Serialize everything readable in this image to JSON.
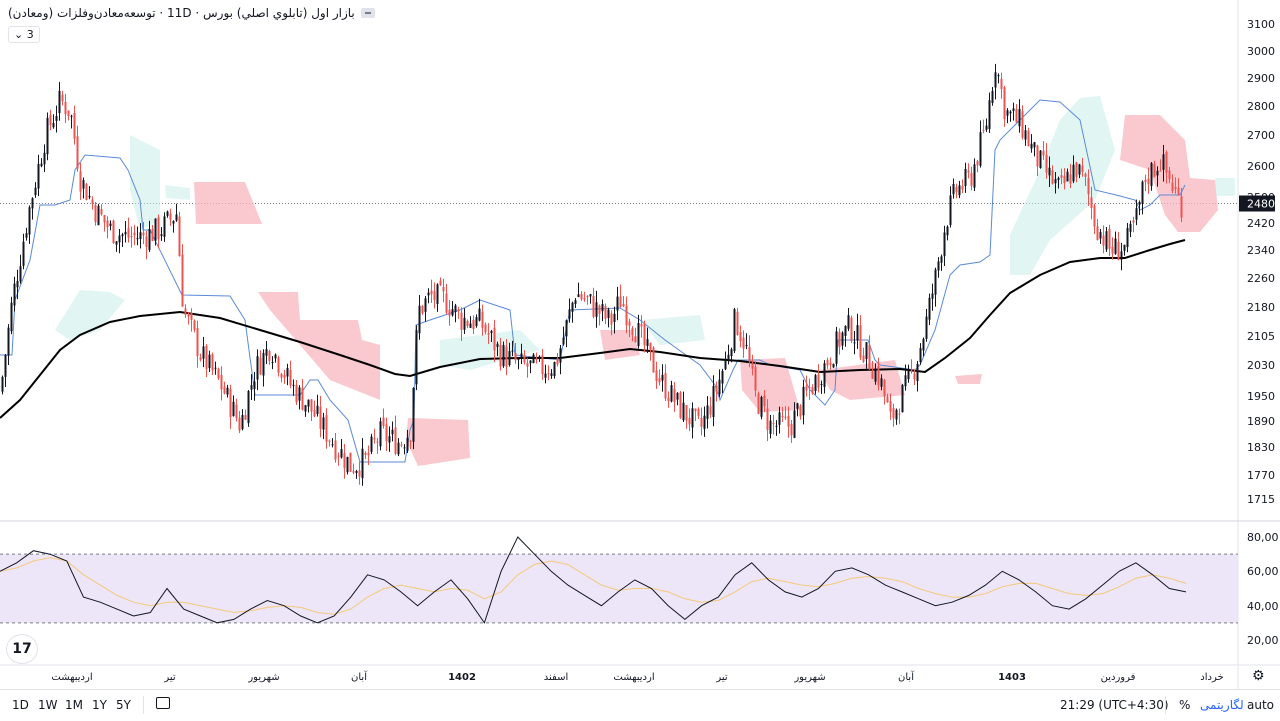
{
  "legend": {
    "title": "بازار اول (تابلوي اصلي) بورس · 11D · توسعه‌معادن‌وفلزات (ومعادن)",
    "collapse_label": "3"
  },
  "price_axis": {
    "ticks": [
      "3100",
      "3000",
      "2900",
      "2800",
      "2700",
      "2600",
      "2500",
      "2420",
      "2340",
      "2260",
      "2180",
      "2105",
      "2030",
      "1950",
      "1890",
      "1830",
      "1770",
      "1715"
    ],
    "current_price": "2480"
  },
  "rsi_axis": {
    "ticks": [
      "80,00",
      "60,00",
      "40,00",
      "20,00"
    ]
  },
  "time_axis": {
    "labels": [
      "اردیبهشت",
      "تیر",
      "شهریور",
      "آبان",
      "1402",
      "اسفند",
      "اردیبهشت",
      "تیر",
      "شهریور",
      "آبان",
      "1403",
      "فروردین",
      "خرداد"
    ]
  },
  "bottom_bar": {
    "ranges": [
      "1D",
      "1W",
      "1M",
      "1Y",
      "5Y"
    ],
    "time": "21:29 (UTC+4:30)",
    "percent": "%",
    "log": "لگاریتمی",
    "auto": "auto"
  },
  "logo_text": "17",
  "colors": {
    "up": "#131722",
    "down": "#ef5350",
    "ma": "#000000",
    "kijun": "#5b8ad6",
    "cloud_bear": "#f7b7bf",
    "cloud_bull": "#c9ece9",
    "rsi": "#131722",
    "rsi_ma": "#f5c97a",
    "rsi_band": "#ece6f8"
  },
  "chart_data": [
    {
      "type": "line",
      "title": "",
      "series": [
        {
          "name": "",
          "values": [
            1900,
            1960,
            2050,
            2170,
            2320,
            2450,
            2600,
            2720,
            2800,
            2850,
            2820,
            2680,
            2550,
            2470,
            2420,
            2370,
            2360,
            2340,
            2380,
            2450,
            2480,
            2410,
            2350,
            2330,
            2330
          ]
        },
        {
          "name": "",
          "values": [
            2230,
            2210,
            2180,
            2150,
            2100,
            2050,
            1990,
            1930,
            1890,
            1860,
            1820,
            1790,
            1770,
            1760,
            1780,
            1800,
            1810,
            1820,
            1850,
            1900,
            1960,
            2050,
            2120,
            2190,
            2220
          ]
        }
      ],
      "ylim": [
        1700,
        3120
      ]
    },
    {
      "type": "line",
      "title": "",
      "series": [
        {
          "name": "",
          "values": [
            60,
            65,
            72,
            70,
            66,
            45,
            42,
            38,
            34,
            36,
            50,
            38,
            34,
            30,
            32,
            38,
            43,
            40,
            34,
            30,
            34,
            45,
            58,
            55,
            48,
            40,
            48,
            55,
            44,
            30,
            60,
            80,
            70,
            60,
            52,
            46,
            40,
            48,
            55,
            50,
            40,
            32,
            40,
            45,
            58,
            65,
            55,
            48,
            45,
            50,
            60,
            62,
            58,
            52,
            48,
            44,
            40,
            42,
            46,
            52,
            60,
            55,
            48,
            40,
            38,
            44,
            52,
            60,
            65,
            58,
            50,
            48
          ]
        },
        {
          "name": "",
          "values": [
            60,
            62,
            66,
            68,
            66,
            58,
            52,
            46,
            42,
            40,
            42,
            42,
            40,
            38,
            36,
            37,
            39,
            40,
            39,
            36,
            35,
            38,
            45,
            50,
            52,
            50,
            48,
            50,
            49,
            44,
            48,
            58,
            64,
            66,
            64,
            58,
            52,
            49,
            50,
            50,
            48,
            44,
            42,
            43,
            48,
            54,
            56,
            54,
            52,
            51,
            53,
            56,
            57,
            56,
            54,
            50,
            47,
            45,
            45,
            47,
            51,
            53,
            53,
            50,
            47,
            46,
            47,
            51,
            56,
            58,
            56,
            53
          ]
        }
      ],
      "ylim": [
        15,
        90
      ]
    }
  ]
}
